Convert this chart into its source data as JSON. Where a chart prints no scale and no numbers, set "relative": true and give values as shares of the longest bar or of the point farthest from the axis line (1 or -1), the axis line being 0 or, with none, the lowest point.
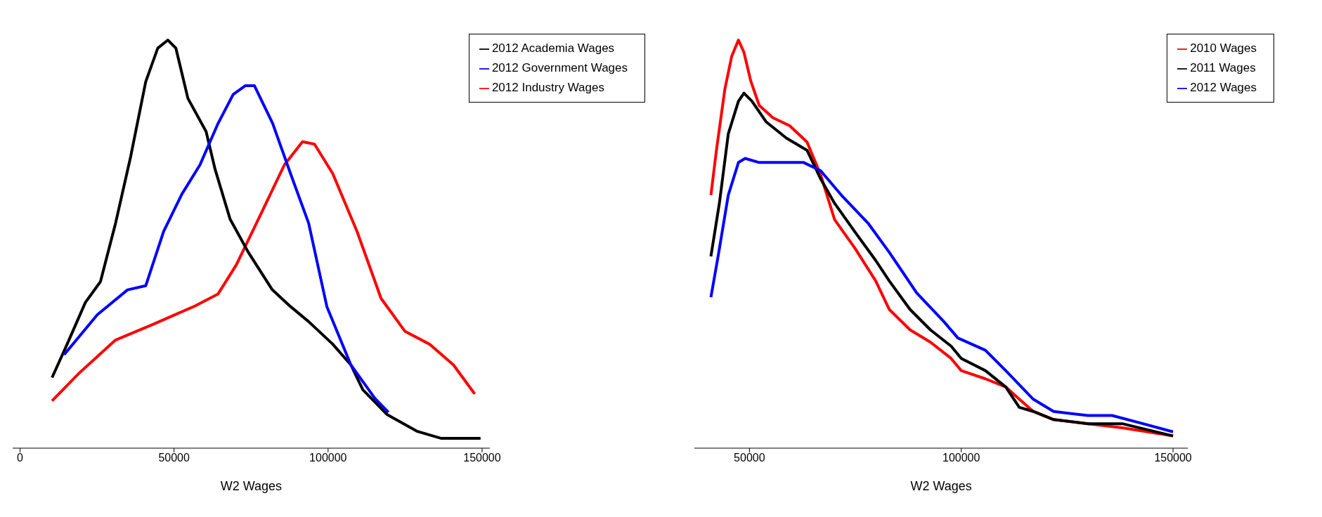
{
  "chart_data": [
    {
      "type": "line",
      "xlabel": "W2 Wages",
      "relative": true,
      "xlim": [
        -2400,
        152500
      ],
      "xticks": [
        0,
        50000,
        100000,
        150000
      ],
      "legend": "top right",
      "grid": false,
      "marker": "none",
      "series": [
        {
          "name": "2012 Industry Wages",
          "color": "#ff0000",
          "x": [
            10400,
            19200,
            31000,
            42700,
            56400,
            64300,
            70200,
            78000,
            85800,
            91700,
            95600,
            101500,
            109400,
            117200,
            125000,
            132900,
            140700,
            147600
          ],
          "values": [
            0.116,
            0.184,
            0.265,
            0.302,
            0.347,
            0.378,
            0.449,
            0.571,
            0.694,
            0.751,
            0.745,
            0.673,
            0.531,
            0.367,
            0.286,
            0.255,
            0.204,
            0.133
          ]
        },
        {
          "name": "2012 Academia Wages",
          "color": "#000000",
          "x": [
            10400,
            15300,
            21200,
            26100,
            31000,
            35900,
            40800,
            44700,
            48000,
            50600,
            54500,
            60400,
            63300,
            68200,
            74100,
            81900,
            87800,
            93700,
            101500,
            107400,
            111300,
            119200,
            129000,
            136800,
            149500
          ],
          "values": [
            0.173,
            0.255,
            0.357,
            0.408,
            0.551,
            0.714,
            0.898,
            0.98,
            1.0,
            0.98,
            0.857,
            0.776,
            0.684,
            0.561,
            0.48,
            0.388,
            0.347,
            0.31,
            0.255,
            0.204,
            0.143,
            0.082,
            0.041,
            0.024,
            0.024
          ]
        },
        {
          "name": "2012 Government Wages",
          "color": "#0000ff",
          "x": [
            14300,
            25100,
            34900,
            40800,
            46600,
            52500,
            58400,
            64300,
            69200,
            73100,
            76100,
            82000,
            87800,
            93700,
            99600,
            107400,
            115200,
            119600
          ],
          "values": [
            0.229,
            0.327,
            0.388,
            0.398,
            0.531,
            0.622,
            0.694,
            0.796,
            0.867,
            0.888,
            0.888,
            0.796,
            0.673,
            0.551,
            0.347,
            0.204,
            0.122,
            0.088
          ]
        }
      ]
    },
    {
      "type": "line",
      "xlabel": "W2 Wages",
      "relative": true,
      "xlim": [
        37000,
        153500
      ],
      "xticks": [
        50000,
        100000,
        150000
      ],
      "legend": "top right",
      "grid": false,
      "marker": "none",
      "series": [
        {
          "name": "2010 Wages",
          "color": "#ff0000",
          "x": [
            40900,
            42200,
            44200,
            45800,
            47400,
            48700,
            50300,
            52300,
            55500,
            59500,
            63600,
            66800,
            70100,
            74900,
            79800,
            83000,
            87900,
            92700,
            97600,
            100000,
            105700,
            110500,
            113700,
            117000,
            121800,
            129900,
            138000,
            150000
          ],
          "values": [
            0.62,
            0.73,
            0.88,
            0.96,
            1.0,
            0.97,
            0.9,
            0.84,
            0.81,
            0.79,
            0.75,
            0.67,
            0.56,
            0.49,
            0.41,
            0.34,
            0.29,
            0.26,
            0.22,
            0.19,
            0.17,
            0.15,
            0.12,
            0.09,
            0.07,
            0.06,
            0.05,
            0.03
          ]
        },
        {
          "name": "2011 Wages",
          "color": "#000000",
          "x": [
            40900,
            42900,
            45000,
            47400,
            48700,
            50600,
            53900,
            58700,
            63600,
            66800,
            70100,
            74900,
            79800,
            83000,
            87900,
            92700,
            97600,
            100000,
            105700,
            110500,
            113700,
            117000,
            121800,
            129900,
            138000,
            150000
          ],
          "values": [
            0.47,
            0.6,
            0.77,
            0.85,
            0.87,
            0.85,
            0.8,
            0.76,
            0.73,
            0.66,
            0.6,
            0.53,
            0.46,
            0.41,
            0.34,
            0.29,
            0.25,
            0.22,
            0.19,
            0.15,
            0.1,
            0.09,
            0.07,
            0.06,
            0.06,
            0.03
          ]
        },
        {
          "name": "2012 Wages",
          "color": "#0000ff",
          "x": [
            40900,
            42600,
            45000,
            47400,
            49000,
            52300,
            57100,
            62800,
            66800,
            71700,
            78100,
            83000,
            89500,
            95900,
            99200,
            105700,
            110500,
            117000,
            121800,
            129900,
            135600,
            142900,
            150000
          ],
          "values": [
            0.37,
            0.47,
            0.62,
            0.7,
            0.71,
            0.7,
            0.7,
            0.7,
            0.68,
            0.62,
            0.55,
            0.48,
            0.38,
            0.31,
            0.27,
            0.24,
            0.19,
            0.12,
            0.09,
            0.08,
            0.08,
            0.06,
            0.04
          ]
        }
      ]
    }
  ]
}
